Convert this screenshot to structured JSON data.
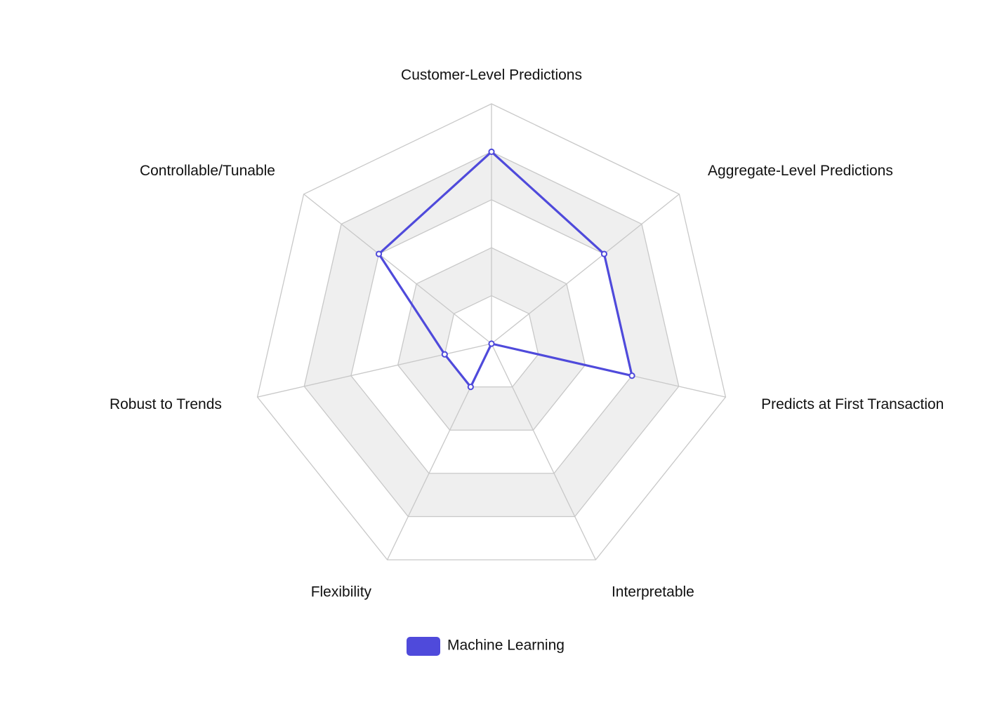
{
  "chart_data": {
    "type": "radar",
    "axes": [
      "Customer-Level Predictions",
      "Aggregate-Level Predictions",
      "Predicts at First Transaction",
      "Interpretable",
      "Flexibility",
      "Robust to Trends",
      "Controllable/Tunable"
    ],
    "rlim": [
      0,
      5
    ],
    "levels": 5,
    "grid": true,
    "grid_color": "#c8c8c8",
    "band_color": "#efefef",
    "legend_position": "bottom-center",
    "series": [
      {
        "name": "Machine Learning",
        "color": "#4f4adb",
        "values": [
          4,
          3,
          3,
          0,
          1,
          1,
          3
        ]
      }
    ]
  }
}
